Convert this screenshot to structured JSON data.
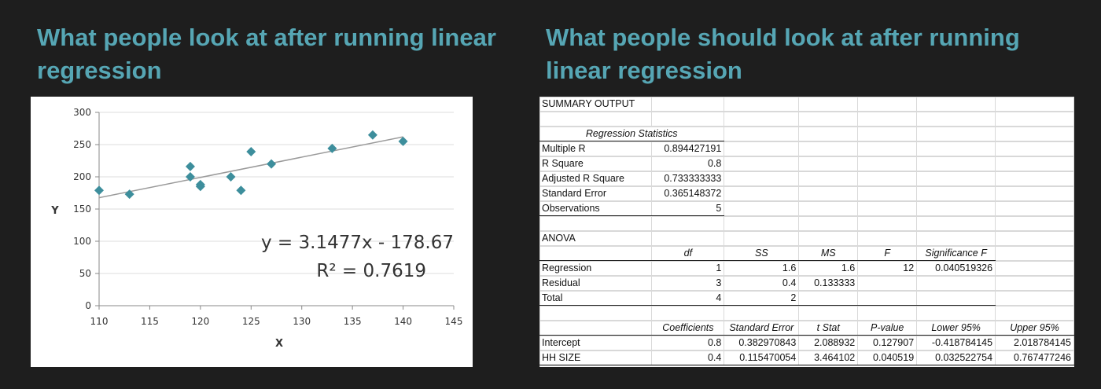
{
  "headings": {
    "left": "What people look at after running linear regression",
    "right": "What people should look at after running linear regression"
  },
  "chart_data": {
    "type": "scatter",
    "xlabel": "X",
    "ylabel": "Y",
    "xlim": [
      110,
      145
    ],
    "ylim": [
      0,
      300
    ],
    "x_ticks": [
      110,
      115,
      120,
      125,
      130,
      135,
      140,
      145
    ],
    "y_ticks": [
      0,
      50,
      100,
      150,
      200,
      250,
      300
    ],
    "grid": "horizontal",
    "marker_color": "#3d8e9c",
    "points": [
      {
        "x": 110,
        "y": 179
      },
      {
        "x": 113,
        "y": 173
      },
      {
        "x": 119,
        "y": 216
      },
      {
        "x": 119,
        "y": 200
      },
      {
        "x": 120,
        "y": 188
      },
      {
        "x": 120,
        "y": 185
      },
      {
        "x": 123,
        "y": 200
      },
      {
        "x": 124,
        "y": 179
      },
      {
        "x": 125,
        "y": 239
      },
      {
        "x": 127,
        "y": 220
      },
      {
        "x": 133,
        "y": 244
      },
      {
        "x": 137,
        "y": 265
      },
      {
        "x": 140,
        "y": 255
      }
    ],
    "trendline": {
      "slope": 3.1477,
      "intercept": -178.67,
      "x_range": [
        110,
        140
      ]
    },
    "equation": "y = 3.1477x - 178.67",
    "r_squared": "R² = 0.7619"
  },
  "sheet": {
    "title": "SUMMARY OUTPUT",
    "reg_stats_header": "Regression Statistics",
    "reg_stats": [
      {
        "label": "Multiple R",
        "value": "0.894427191"
      },
      {
        "label": "R Square",
        "value": "0.8"
      },
      {
        "label": "Adjusted R Square",
        "value": "0.733333333"
      },
      {
        "label": "Standard Error",
        "value": "0.365148372"
      },
      {
        "label": "Observations",
        "value": "5"
      }
    ],
    "anova_title": "ANOVA",
    "anova_headers": [
      "df",
      "SS",
      "MS",
      "F",
      "Significance F"
    ],
    "anova_rows": [
      {
        "label": "Regression",
        "df": "1",
        "ss": "1.6",
        "ms": "1.6",
        "f": "12",
        "sig": "0.040519326"
      },
      {
        "label": "Residual",
        "df": "3",
        "ss": "0.4",
        "ms": "0.133333",
        "f": "",
        "sig": ""
      },
      {
        "label": "Total",
        "df": "4",
        "ss": "2",
        "ms": "",
        "f": "",
        "sig": ""
      }
    ],
    "coef_headers": [
      "Coefficients",
      "Standard Error",
      "t Stat",
      "P-value",
      "Lower 95%",
      "Upper 95%"
    ],
    "coef_rows": [
      {
        "label": "Intercept",
        "values": [
          "0.8",
          "0.382970843",
          "2.088932",
          "0.127907",
          "-0.418784145",
          "2.018784145"
        ]
      },
      {
        "label": "HH SIZE",
        "values": [
          "0.4",
          "0.115470054",
          "3.464102",
          "0.040519",
          "0.032522754",
          "0.767477246"
        ]
      }
    ]
  }
}
